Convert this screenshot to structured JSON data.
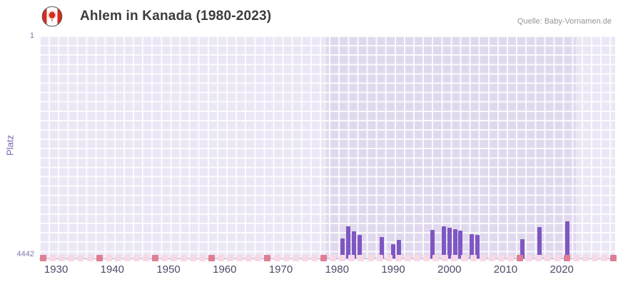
{
  "header": {
    "flag_icon": "canada-flag",
    "title": "Ahlem in Kanada (1980-2023)",
    "source": "Quelle: Baby-Vornamen.de"
  },
  "chart_data": {
    "type": "bar",
    "title": "Ahlem in Kanada (1980-2023)",
    "source": "Quelle: Baby-Vornamen.de",
    "ylabel": "Platz",
    "y_axis": {
      "min": 1,
      "max": 4442,
      "inverted": true,
      "top_label": "1",
      "bottom_label": "4442"
    },
    "x_axis": {
      "min": 1927,
      "max": 2029.5,
      "ticks": [
        1930,
        1940,
        1950,
        1960,
        1970,
        1980,
        1990,
        2000,
        2010,
        2020
      ]
    },
    "highlight_range": {
      "start": 1978,
      "end": 2022.5
    },
    "series": [
      {
        "name": "Platz",
        "points": [
          {
            "year": 1981,
            "rank": 4040
          },
          {
            "year": 1982,
            "rank": 3800
          },
          {
            "year": 1983,
            "rank": 3900
          },
          {
            "year": 1984,
            "rank": 3970
          },
          {
            "year": 1988,
            "rank": 4010
          },
          {
            "year": 1990,
            "rank": 4160
          },
          {
            "year": 1991,
            "rank": 4070
          },
          {
            "year": 1997,
            "rank": 3870
          },
          {
            "year": 1999,
            "rank": 3800
          },
          {
            "year": 2000,
            "rank": 3830
          },
          {
            "year": 2001,
            "rank": 3860
          },
          {
            "year": 2002,
            "rank": 3890
          },
          {
            "year": 2004,
            "rank": 3960
          },
          {
            "year": 2005,
            "rank": 3970
          },
          {
            "year": 2013,
            "rank": 4060
          },
          {
            "year": 2016,
            "rank": 3810
          },
          {
            "year": 2021,
            "rank": 3700
          }
        ]
      }
    ],
    "bottom_strip": {
      "cell_count": 62,
      "pitch": 13.1,
      "size": 9,
      "base_color": "#f7d9e6",
      "accent_color": "#e07d92",
      "accent_indices": [
        0,
        6,
        12,
        18,
        24,
        30,
        51,
        56,
        61
      ]
    },
    "colors": {
      "bar": "#7e57c2",
      "plot_bg": "#ebe7f5",
      "band_bg": "#e0d9ee",
      "grid": "#ffffff",
      "axis_text": "#8577ad",
      "x_tick_text": "#4f4a68",
      "title_text": "#3c3c3c",
      "source_text": "#969696",
      "ylabel_text": "#7a5fb0"
    }
  }
}
